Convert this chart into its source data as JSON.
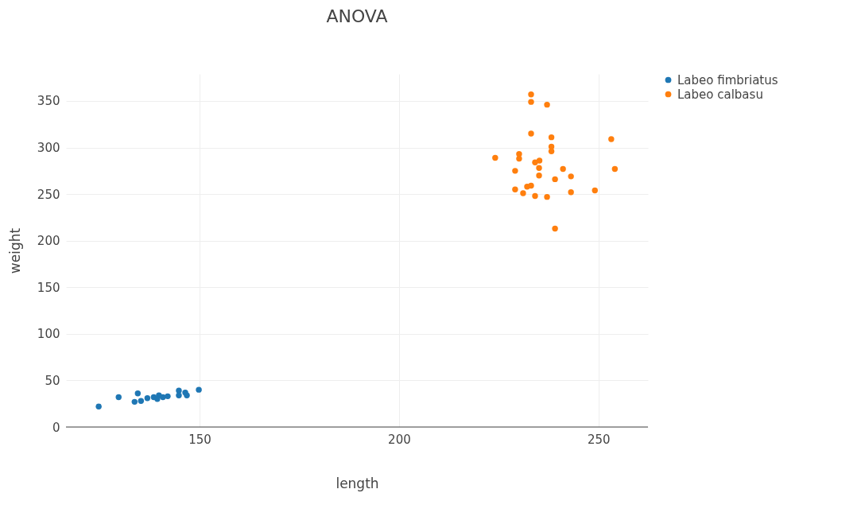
{
  "chart_data": {
    "type": "scatter",
    "title": "ANOVA",
    "xlabel": "length",
    "ylabel": "weight",
    "xlim": [
      116.5,
      262.4
    ],
    "xticks": [
      150,
      200,
      250
    ],
    "ylim": [
      0,
      379
    ],
    "yticks": [
      0,
      50,
      100,
      150,
      200,
      250,
      300,
      350
    ],
    "grid": true,
    "legend": "top right",
    "marker": "circle",
    "series": [
      {
        "name": "Labeo fimbriatus",
        "color": "#1f77b4",
        "x": [
          124.7,
          129.7,
          134.5,
          133.7,
          135.3,
          136.9,
          138.5,
          139.2,
          139.8,
          140.8,
          142,
          144.8,
          144.8,
          146.4,
          146.8,
          149.8,
          139.4
        ],
        "values": [
          22,
          32,
          36,
          27,
          28,
          31,
          32,
          null,
          34,
          32,
          33,
          39,
          34,
          37,
          34,
          40,
          30
        ]
      },
      {
        "name": "Labeo calbasu",
        "color": "#ff7f0e",
        "x": [
          233.1,
          233.1,
          237.1,
          233.1,
          238.2,
          253.2,
          238.2,
          238.2,
          224.1,
          230.1,
          230.1,
          235.2,
          234.1,
          235.1,
          241.1,
          254.1,
          229.1,
          235.1,
          243.1,
          239.1,
          229.1,
          232.1,
          233.1,
          231.1,
          234.1,
          237.1,
          243.1,
          249.1,
          239.1
        ],
        "values": [
          357,
          349,
          346,
          315,
          311,
          309,
          301,
          296,
          289,
          293,
          288,
          286,
          284,
          278,
          277,
          277,
          275,
          270,
          269,
          266,
          255,
          258,
          259,
          251,
          248,
          247,
          252,
          254,
          213
        ]
      }
    ]
  }
}
